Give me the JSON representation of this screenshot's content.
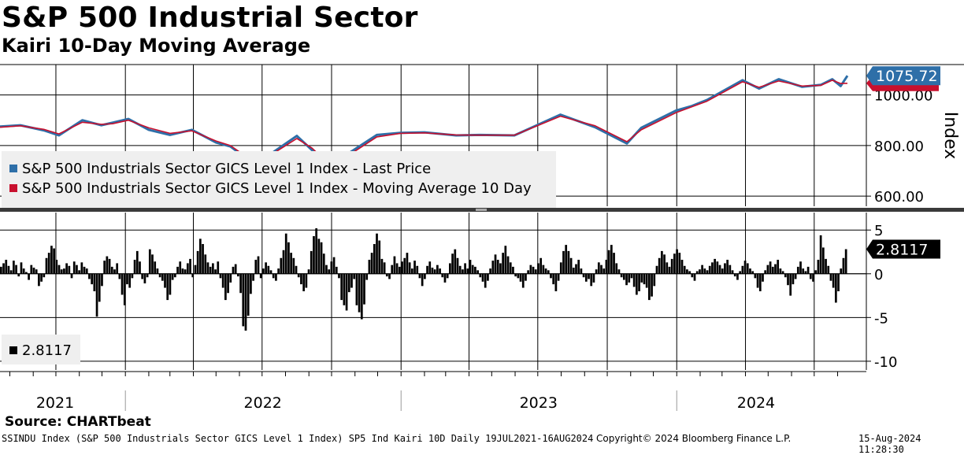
{
  "title": "S&P 500 Industrial Sector",
  "subtitle": "Kairi 10-Day Moving Average",
  "source": "Source: CHARTbeat",
  "footer": {
    "left": "SSINDU Index (S&P 500 Industrials Sector GICS Level 1 Index) SP5 Ind Kairi 10D  Daily 19JUL2021-16AUG2024",
    "middle": "Copyright© 2024 Bloomberg Finance L.P.",
    "right": "15-Aug-2024 11:28:30"
  },
  "colors": {
    "price": "#2e6fa8",
    "ma": "#c8102e",
    "kairi": "#000000",
    "legend_bg": "#efefef"
  },
  "chart_data": [
    {
      "type": "line",
      "ylabel": "Index",
      "y_ticks": [
        "600.00",
        "800.00",
        "1000.00"
      ],
      "ylim": [
        560,
        1120
      ],
      "x_tick_labels": [
        "2021",
        "2022",
        "2023",
        "2024"
      ],
      "last_value_label": "1075.72",
      "legend": [
        "S&P 500 Industrials Sector GICS Level 1 Index - Last Price",
        "S&P 500 Industrials Sector GICS Level 1 Index - Moving Average 10 Day"
      ],
      "series": [
        {
          "name": "S&P 500 Industrials Sector GICS Level 1 Index - Last Price",
          "x": [
            "2021-07-19",
            "2021-08-15",
            "2021-09-15",
            "2021-10-05",
            "2021-11-05",
            "2021-11-30",
            "2021-12-15",
            "2022-01-05",
            "2022-02-01",
            "2022-03-01",
            "2022-03-30",
            "2022-05-01",
            "2022-05-20",
            "2022-06-17",
            "2022-07-10",
            "2022-08-16",
            "2022-09-05",
            "2022-09-30",
            "2022-10-25",
            "2022-11-30",
            "2022-12-31",
            "2023-02-01",
            "2023-03-15",
            "2023-04-15",
            "2023-05-31",
            "2023-07-31",
            "2023-09-15",
            "2023-10-27",
            "2023-11-15",
            "2023-12-31",
            "2024-01-20",
            "2024-02-10",
            "2024-03-28",
            "2024-04-19",
            "2024-05-15",
            "2024-06-15",
            "2024-07-10",
            "2024-07-25",
            "2024-08-05",
            "2024-08-14"
          ],
          "values": [
            875,
            880,
            860,
            840,
            900,
            880,
            890,
            905,
            862,
            842,
            862,
            812,
            796,
            735,
            762,
            838,
            782,
            712,
            772,
            842,
            850,
            852,
            840,
            842,
            840,
            922,
            872,
            808,
            870,
            938,
            955,
            980,
            1058,
            1025,
            1062,
            1032,
            1040,
            1062,
            1035,
            1075.72
          ]
        },
        {
          "name": "S&P 500 Industrials Sector GICS Level 1 Index - Moving Average 10 Day",
          "x": [
            "2021-07-19",
            "2021-08-15",
            "2021-09-15",
            "2021-10-05",
            "2021-11-05",
            "2021-11-30",
            "2021-12-15",
            "2022-01-05",
            "2022-02-01",
            "2022-03-01",
            "2022-03-30",
            "2022-05-01",
            "2022-05-20",
            "2022-06-17",
            "2022-07-10",
            "2022-08-16",
            "2022-09-05",
            "2022-09-30",
            "2022-10-25",
            "2022-11-30",
            "2022-12-31",
            "2023-02-01",
            "2023-03-15",
            "2023-04-15",
            "2023-05-31",
            "2023-07-31",
            "2023-09-15",
            "2023-10-27",
            "2023-11-15",
            "2023-12-31",
            "2024-01-20",
            "2024-02-10",
            "2024-03-28",
            "2024-04-19",
            "2024-05-15",
            "2024-06-15",
            "2024-07-10",
            "2024-07-25",
            "2024-08-05",
            "2024-08-14"
          ],
          "values": [
            872,
            878,
            864,
            846,
            892,
            884,
            886,
            900,
            870,
            848,
            858,
            818,
            800,
            742,
            758,
            828,
            790,
            720,
            764,
            834,
            848,
            850,
            842,
            841,
            841,
            916,
            878,
            815,
            862,
            930,
            952,
            975,
            1052,
            1030,
            1055,
            1035,
            1038,
            1058,
            1045,
            1046
          ]
        }
      ]
    },
    {
      "type": "bar",
      "ylabel": "",
      "y_ticks": [
        "5",
        "0",
        "-5",
        "-10"
      ],
      "ylim": [
        -11,
        7
      ],
      "last_value_label": "2.8117",
      "legend": [
        "2.8117"
      ],
      "x_range": [
        "2021-07-19",
        "2024-08-14"
      ],
      "values": [
        0.8,
        1.2,
        1.6,
        0.9,
        0.4,
        1.5,
        1.0,
        -0.3,
        1.3,
        0.6,
        0.2,
        -0.7,
        1.0,
        0.7,
        0.5,
        -1.4,
        -0.9,
        -0.4,
        1.8,
        2.4,
        3.2,
        2.9,
        1.6,
        1.0,
        0.5,
        0.6,
        1.2,
        0.9,
        -0.5,
        1.4,
        1.0,
        0.4,
        1.3,
        0.8,
        0.6,
        -0.6,
        -1.2,
        -2.0,
        -4.9,
        -3.2,
        -1.4,
        1.5,
        2.0,
        1.7,
        0.8,
        0.5,
        1.2,
        -0.6,
        -2.4,
        -3.6,
        -1.2,
        -1.6,
        -0.5,
        1.6,
        2.6,
        1.4,
        -0.6,
        -1.1,
        -0.4,
        2.8,
        2.2,
        1.4,
        0.6,
        -0.4,
        -0.8,
        -1.6,
        -3.0,
        -2.4,
        -0.7,
        -0.4,
        0.8,
        1.4,
        0.6,
        0.5,
        1.2,
        1.7,
        -0.4,
        1.0,
        2.6,
        4.0,
        3.4,
        2.2,
        1.3,
        0.8,
        1.2,
        0.5,
        1.4,
        -0.5,
        -1.6,
        -3.0,
        -2.2,
        -1.0,
        0.8,
        1.1,
        -0.3,
        -2.2,
        -6.0,
        -6.5,
        -4.8,
        -2.3,
        -0.8,
        1.6,
        2.0,
        -0.5,
        0.6,
        1.3,
        0.9,
        0.4,
        -0.5,
        -0.8,
        0.6,
        1.8,
        2.7,
        4.6,
        3.6,
        2.4,
        1.8,
        0.9,
        -0.4,
        -1.2,
        -2.0,
        -1.6,
        0.5,
        2.6,
        4.3,
        5.2,
        4.0,
        3.6,
        2.3,
        1.0,
        0.5,
        1.4,
        1.9,
        0.8,
        -0.5,
        -3.0,
        -3.6,
        -4.2,
        -2.1,
        -1.6,
        -0.6,
        -3.6,
        -4.4,
        -5.2,
        -3.5,
        -0.7,
        1.6,
        2.4,
        3.4,
        4.6,
        3.8,
        1.7,
        1.3,
        -0.3,
        -0.6,
        1.0,
        2.0,
        1.2,
        0.8,
        1.4,
        1.8,
        2.4,
        1.3,
        0.6,
        1.5,
        0.9,
        -0.5,
        -1.4,
        -0.6,
        0.9,
        1.4,
        0.7,
        0.5,
        1.0,
        0.6,
        -0.4,
        -1.0,
        -0.5,
        1.2,
        2.3,
        2.8,
        1.8,
        0.9,
        0.5,
        1.2,
        0.6,
        1.6,
        1.0,
        0.8,
        0.4,
        -0.4,
        -0.9,
        -1.6,
        -0.8,
        0.6,
        1.5,
        2.2,
        1.6,
        1.2,
        2.4,
        3.2,
        2.0,
        1.3,
        0.8,
        -0.3,
        -0.5,
        -0.9,
        -1.6,
        -0.8,
        0.4,
        1.0,
        0.8,
        0.5,
        1.2,
        1.8,
        1.0,
        0.6,
        0.4,
        -0.5,
        -1.2,
        -2.0,
        -0.8,
        1.3,
        2.6,
        3.3,
        2.6,
        1.8,
        0.7,
        1.1,
        1.6,
        0.6,
        -0.4,
        -0.9,
        -0.6,
        -1.4,
        -1.0,
        0.5,
        1.3,
        1.0,
        0.6,
        1.6,
        2.7,
        3.3,
        2.4,
        1.2,
        0.5,
        -0.4,
        -0.7,
        -1.3,
        -1.0,
        -0.5,
        -1.5,
        -2.4,
        -2.0,
        -1.0,
        -1.2,
        -1.6,
        -3.0,
        -2.6,
        -1.4,
        0.9,
        1.8,
        2.6,
        2.2,
        1.3,
        0.8,
        1.7,
        2.3,
        2.8,
        2.4,
        1.6,
        0.9,
        0.5,
        0.3,
        -0.4,
        -0.8,
        0.3,
        0.5,
        1.0,
        0.6,
        0.4,
        0.9,
        1.3,
        1.7,
        1.4,
        1.0,
        0.6,
        1.2,
        1.6,
        1.0,
        0.4,
        -0.3,
        -0.7,
        0.3,
        0.9,
        1.5,
        1.2,
        0.6,
        0.3,
        -0.5,
        -1.6,
        -2.0,
        -0.9,
        0.4,
        1.0,
        1.4,
        0.8,
        1.1,
        1.6,
        0.6,
        0.3,
        -0.4,
        -1.3,
        -2.5,
        -1.2,
        -0.6,
        0.8,
        1.4,
        0.6,
        0.3,
        0.8,
        -0.6,
        -0.9,
        0.4,
        1.6,
        4.4,
        3.0,
        1.7,
        0.9,
        -0.8,
        -1.6,
        -3.3,
        -2.0,
        0.6,
        1.8,
        2.8117
      ]
    }
  ]
}
